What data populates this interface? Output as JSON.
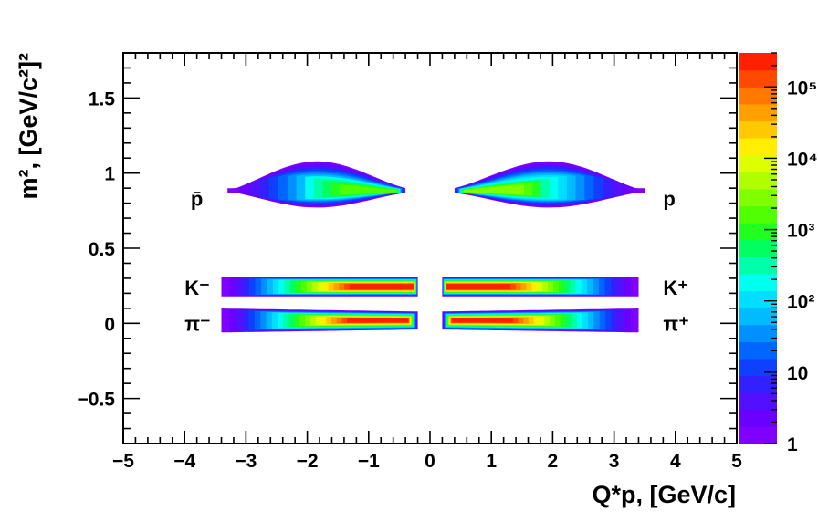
{
  "chart_data": {
    "type": "heatmap",
    "xlabel": "Q*p, [GeV/c]",
    "ylabel": "m², [GeV/c²]²",
    "xlim": [
      -5,
      5
    ],
    "ylim": [
      -0.8,
      1.8
    ],
    "x_ticks": [
      -5,
      -4,
      -3,
      -2,
      -1,
      0,
      1,
      2,
      3,
      4,
      5
    ],
    "x_tick_labels": [
      "−5",
      "−4",
      "−3",
      "−2",
      "−1",
      "0",
      "1",
      "2",
      "3",
      "4",
      "5"
    ],
    "y_ticks": [
      -0.5,
      0,
      0.5,
      1,
      1.5
    ],
    "y_tick_labels": [
      "−0.5",
      "0",
      "0.5",
      "1",
      "1.5"
    ],
    "colorbar": {
      "scale": "log",
      "range": [
        1,
        300000
      ],
      "tick_values": [
        1,
        10,
        100,
        1000,
        10000,
        100000
      ],
      "tick_labels": [
        "1",
        "10",
        "10²",
        "10³",
        "10⁴",
        "10⁵"
      ],
      "colors": [
        "#8000ff",
        "#6a00ff",
        "#5210ff",
        "#3320ff",
        "#1040ff",
        "#0066ff",
        "#0090ff",
        "#00bbff",
        "#00dfff",
        "#00ffee",
        "#00ffaa",
        "#00ff60",
        "#20ff20",
        "#50ff00",
        "#80ff00",
        "#b0ff00",
        "#ddff00",
        "#ffee00",
        "#ffc800",
        "#ffa000",
        "#ff7800",
        "#ff4800",
        "#ff2000"
      ]
    },
    "bands": [
      {
        "particle": "p",
        "charge": "+",
        "mass2": 0.88,
        "x_range": [
          0.4,
          3.5
        ],
        "peak_x": 1.0,
        "peak_level": 0.62
      },
      {
        "particle": "pbar",
        "charge": "-",
        "mass2": 0.88,
        "x_range": [
          -3.3,
          -0.4
        ],
        "peak_x": -1.0,
        "peak_level": 0.58
      },
      {
        "particle": "K+",
        "charge": "+",
        "mass2": 0.244,
        "x_range": [
          0.2,
          3.4
        ],
        "peak_x": 0.8,
        "peak_level": 0.98
      },
      {
        "particle": "K-",
        "charge": "-",
        "mass2": 0.244,
        "x_range": [
          -3.4,
          -0.2
        ],
        "peak_x": -0.8,
        "peak_level": 0.98
      },
      {
        "particle": "pi+",
        "charge": "+",
        "mass2": 0.019,
        "x_range": [
          0.2,
          3.4
        ],
        "peak_x": 1.0,
        "peak_level": 1.0
      },
      {
        "particle": "pi-",
        "charge": "-",
        "mass2": 0.019,
        "x_range": [
          -3.4,
          -0.2
        ],
        "peak_x": -1.0,
        "peak_level": 1.0
      }
    ],
    "annotations": [
      {
        "text": "p̄",
        "x": -3.9,
        "y": 0.83
      },
      {
        "text": "p",
        "x": 3.8,
        "y": 0.83
      },
      {
        "text": "K⁻",
        "x": -4.0,
        "y": 0.24
      },
      {
        "text": "K⁺",
        "x": 3.8,
        "y": 0.24
      },
      {
        "text": "π⁻",
        "x": -4.0,
        "y": 0.0
      },
      {
        "text": "π⁺",
        "x": 3.8,
        "y": 0.0
      }
    ]
  }
}
